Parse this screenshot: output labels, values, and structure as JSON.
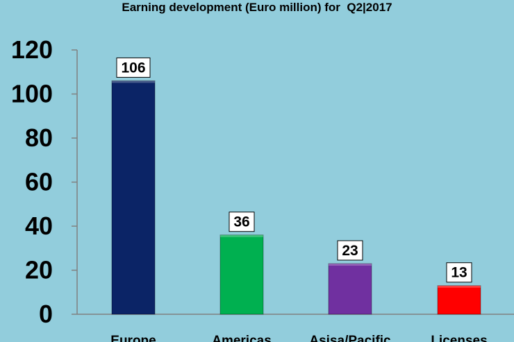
{
  "chart_data": {
    "type": "bar",
    "title": "Earning development (Euro million) for  Q2|2017",
    "categories": [
      "Europe",
      "Americas",
      "Asisa/Pacific",
      "Licenses"
    ],
    "values": [
      106,
      36,
      23,
      13
    ],
    "data_labels": [
      "106",
      "36",
      "23",
      "13"
    ],
    "bar_colors": [
      "#0b2466",
      "#00b050",
      "#7030a0",
      "#ff0000"
    ],
    "yticks": [
      "0",
      "20",
      "40",
      "60",
      "80",
      "100",
      "120"
    ],
    "ylim": [
      0,
      120
    ],
    "xlabel": "",
    "ylabel": "",
    "grid": false,
    "legend": "none",
    "background": "#92cddc"
  }
}
